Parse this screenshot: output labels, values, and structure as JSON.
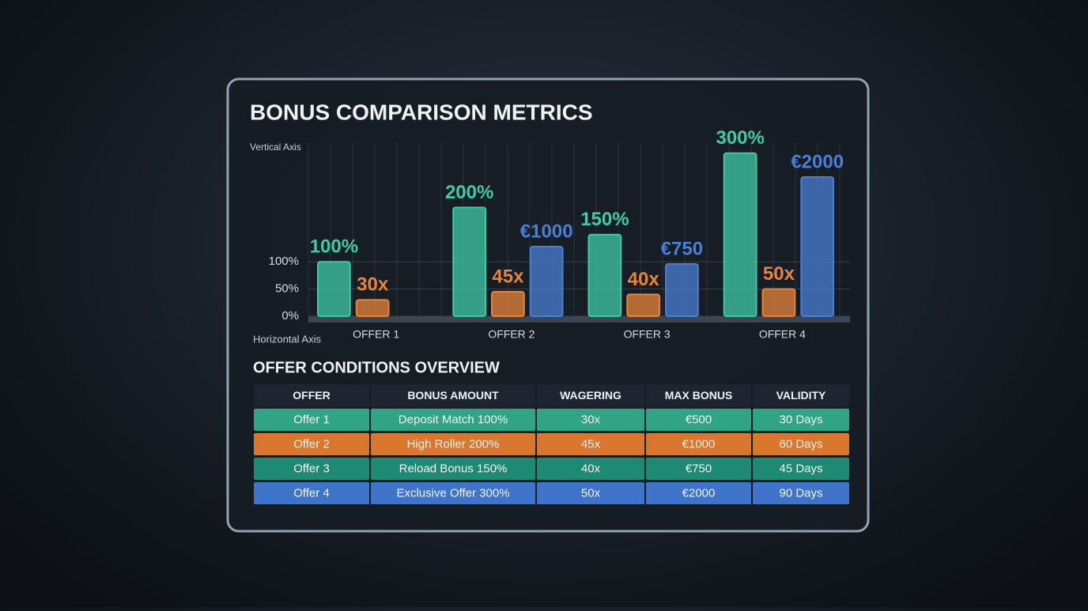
{
  "chart_data": {
    "type": "bar",
    "title": "BONUS COMPARISON METRICS",
    "y_label": "Vertical Axis",
    "x_label": "Horizontal Axis",
    "categories": [
      "OFFER 1",
      "OFFER 2",
      "OFFER 3",
      "OFFER 4"
    ],
    "series": [
      {
        "color": "#3fc9a8",
        "values": [
          100,
          200,
          150,
          300
        ],
        "value_labels": [
          "100%",
          "200%",
          "150%",
          "300%"
        ]
      },
      {
        "color": "#e8843a",
        "values": [
          30,
          45,
          40,
          50
        ],
        "value_labels": [
          "30x",
          "45x",
          "40x",
          "50x"
        ]
      },
      {
        "color": "#4a7fd4",
        "axis": "y2",
        "values": [
          null,
          1000,
          750,
          2000
        ],
        "value_labels": [
          null,
          "€1000",
          "€750",
          "€2000"
        ]
      }
    ],
    "ylim": [
      0,
      320
    ],
    "yticks": [
      {
        "value": 0,
        "label": "0%"
      },
      {
        "value": 50,
        "label": "50%"
      },
      {
        "value": 100,
        "label": "100%"
      }
    ],
    "y2lim": [
      0,
      2500
    ],
    "grid": true
  },
  "table": {
    "title": "OFFER CONDITIONS OVERVIEW",
    "columns": [
      "OFFER",
      "BONUS AMOUNT",
      "WAGERING",
      "MAX BONUS",
      "VALIDITY"
    ],
    "rows": [
      [
        "Offer 1",
        "Deposit Match 100%",
        "30x",
        "€500",
        "30 Days"
      ],
      [
        "Offer 2",
        "High Roller 200%",
        "45x",
        "€1000",
        "60 Days"
      ],
      [
        "Offer 3",
        "Reload Bonus 150%",
        "40x",
        "€750",
        "45 Days"
      ],
      [
        "Offer 4",
        "Exclusive Offer 300%",
        "50x",
        "€2000",
        "90 Days"
      ]
    ]
  }
}
